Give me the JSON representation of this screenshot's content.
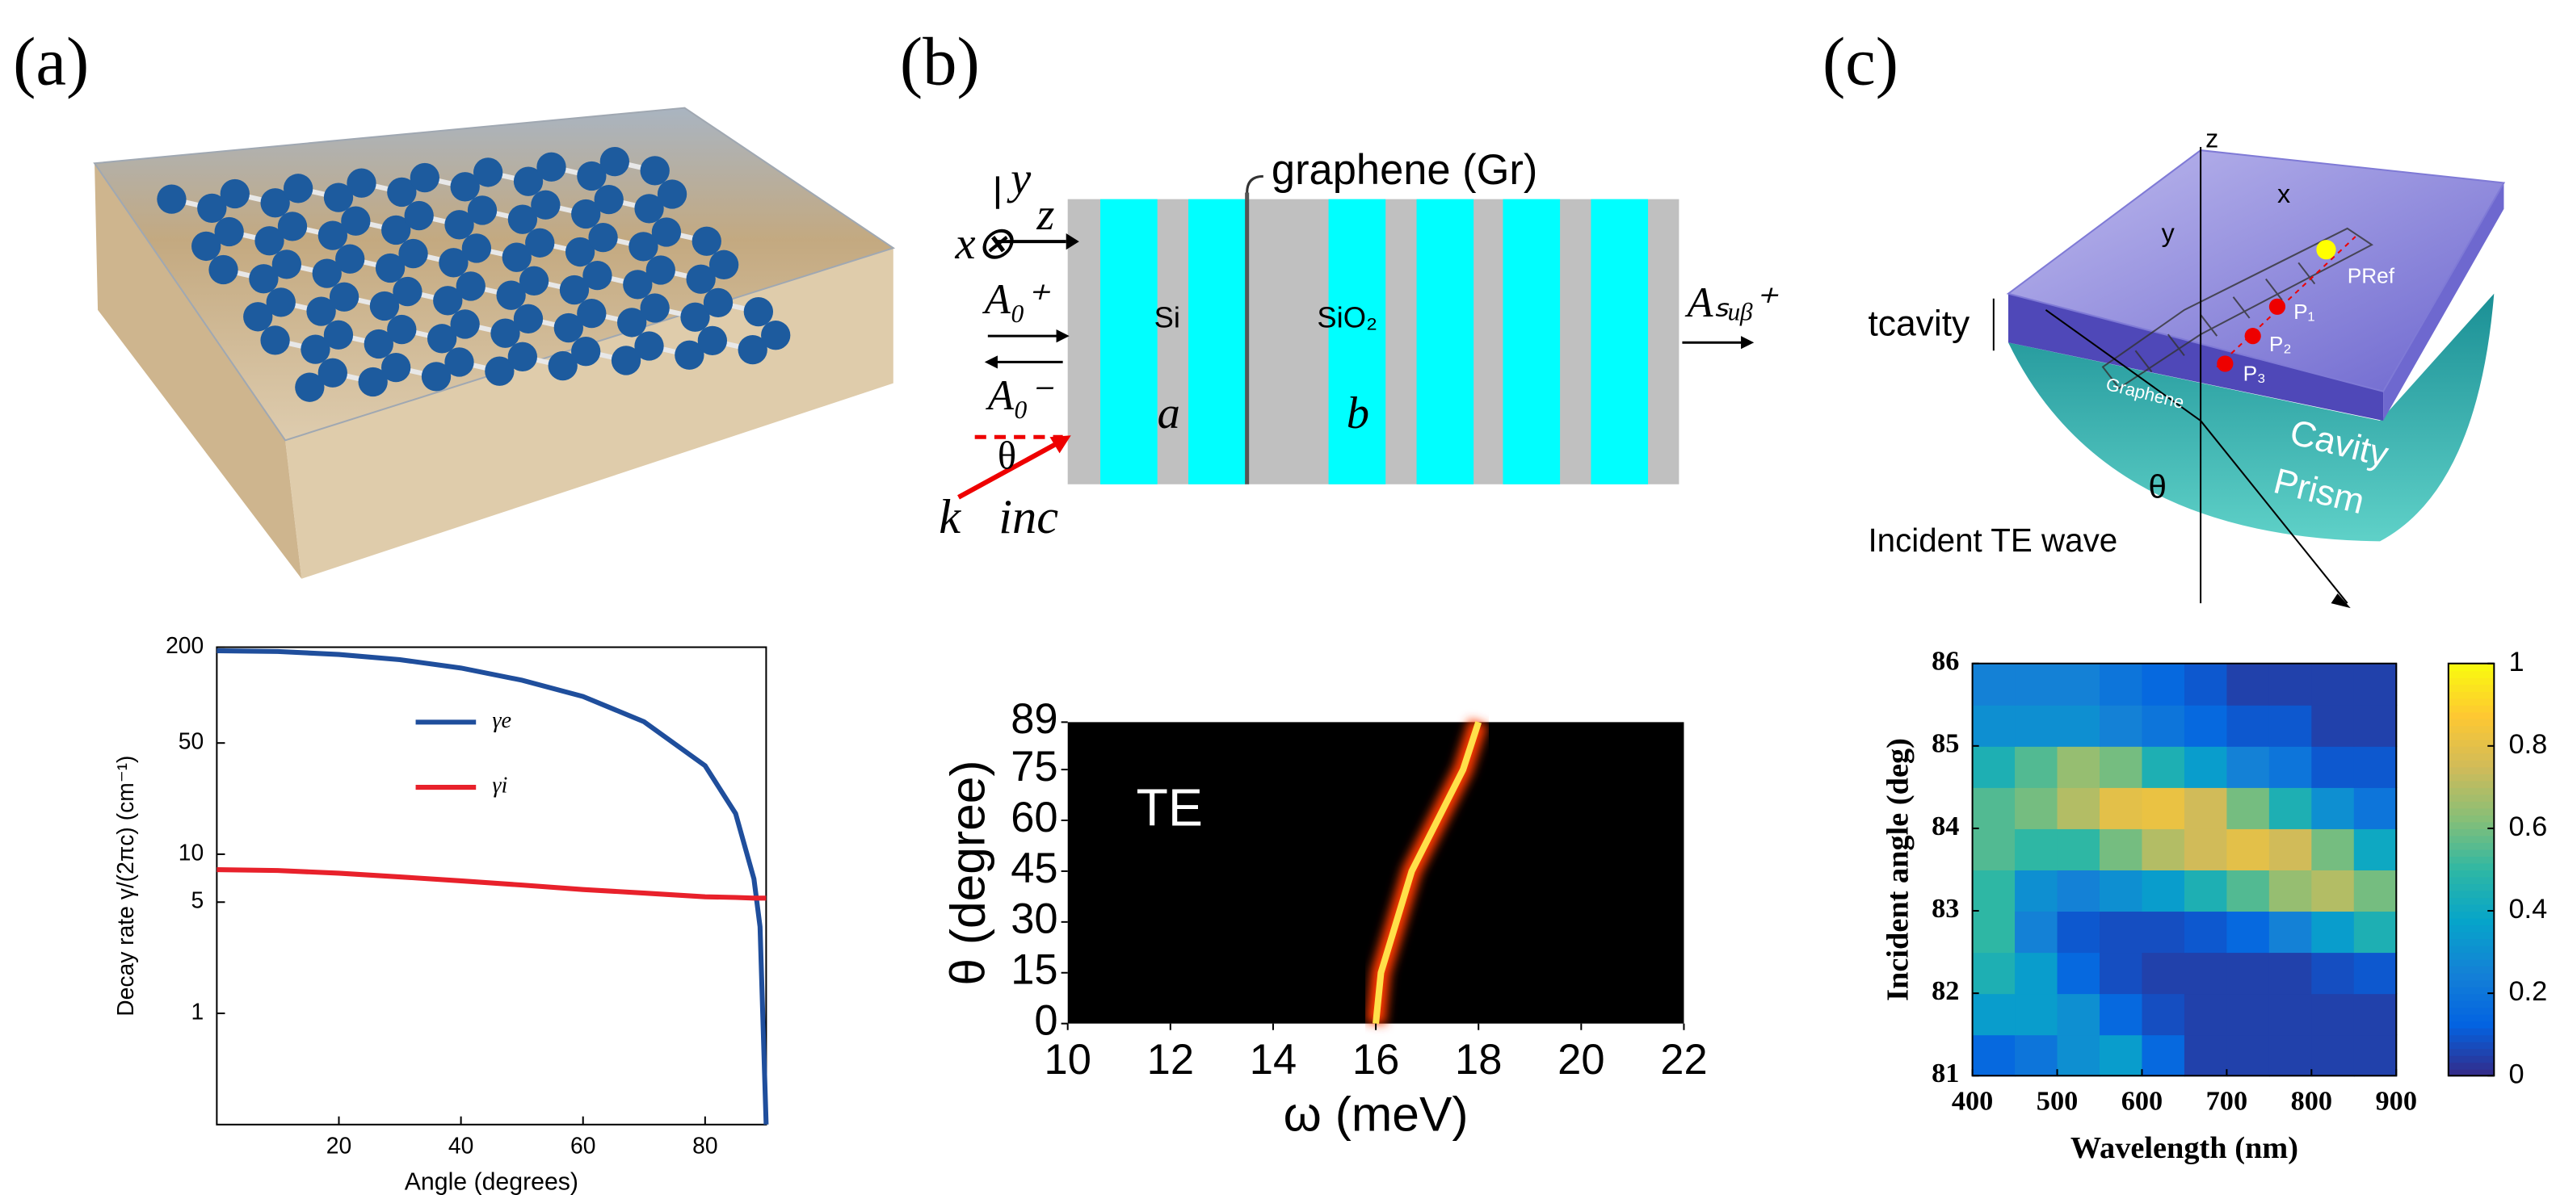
{
  "figure": {
    "panel_labels": [
      "(a)",
      "(b)",
      "(c)"
    ]
  },
  "diagram_b": {
    "axes": [
      "y",
      "z",
      "x⊗"
    ],
    "graphene": "graphene (Gr)",
    "incident": "A₀⁺",
    "reflected": "A₀⁻",
    "transmitted": "Aₛᵤᵦ⁺",
    "materials": [
      "Si",
      "SiO₂"
    ],
    "layers": [
      "a",
      "b"
    ],
    "angle": "θ",
    "wavevector": "k⃗inc"
  },
  "diagram_c": {
    "axes": [
      "z",
      "x",
      "y"
    ],
    "points": [
      "PRef",
      "P₁",
      "P₂",
      "P₃"
    ],
    "thickness": "tcavity",
    "graphene": "Graphene",
    "cavity": "Cavity",
    "prism": "Prism",
    "angle": "θ",
    "incident": "Incident TE wave"
  },
  "chart_data": [
    {
      "type": "line",
      "xlabel": "Angle (degrees)",
      "ylabel": "Decay rate γ/(2πc) (cm⁻¹)",
      "log_y": true,
      "x": [
        0,
        10,
        20,
        30,
        40,
        50,
        60,
        70,
        80,
        85,
        88,
        89,
        90
      ],
      "xlim": [
        0,
        90
      ],
      "xticks": [
        20,
        40,
        60,
        80
      ],
      "ylim": [
        0.2,
        200
      ],
      "yticks": [
        1,
        5,
        10,
        50,
        200
      ],
      "series": [
        {
          "name": "γe",
          "color": "#1f4e9c",
          "values": [
            190,
            188,
            180,
            167,
            148,
            124,
            98,
            68,
            36,
            18,
            7,
            3.5,
            0.2
          ]
        },
        {
          "name": "γi",
          "color": "#e8212b",
          "values": [
            8,
            7.9,
            7.6,
            7.2,
            6.8,
            6.4,
            6,
            5.7,
            5.4,
            5.35,
            5.3,
            5.3,
            5.3
          ]
        }
      ]
    },
    {
      "type": "line",
      "annotation": "TE",
      "xlabel": "ω (meV)",
      "ylabel": "θ (degree)",
      "x": [
        16.0,
        16.1,
        16.4,
        16.7,
        17.2,
        17.7,
        18.0
      ],
      "values": [
        0,
        15,
        30,
        45,
        60,
        75,
        89
      ],
      "color": "#ffe04a",
      "background": "#000000",
      "xlim": [
        10,
        22
      ],
      "xticks": [
        10,
        12,
        14,
        16,
        18,
        20,
        22
      ],
      "ylim": [
        0,
        89
      ],
      "yticks": [
        0,
        15,
        30,
        45,
        60,
        75,
        89
      ]
    },
    {
      "type": "heatmap",
      "xlabel": "Wavelength (nm)",
      "ylabel": "Incident angle (deg)",
      "colormap": "parula",
      "x": [
        425,
        475,
        525,
        575,
        625,
        675,
        725,
        775,
        825,
        875
      ],
      "y": [
        81.25,
        81.75,
        82.25,
        82.75,
        83.25,
        83.75,
        84.25,
        84.75,
        85.25,
        85.75
      ],
      "z": [
        [
          0.15,
          0.2,
          0.3,
          0.35,
          0.15,
          0.05,
          0.05,
          0.05,
          0.05,
          0.05
        ],
        [
          0.35,
          0.35,
          0.3,
          0.15,
          0.08,
          0.05,
          0.05,
          0.05,
          0.05,
          0.05
        ],
        [
          0.45,
          0.35,
          0.15,
          0.08,
          0.05,
          0.05,
          0.05,
          0.05,
          0.08,
          0.1
        ],
        [
          0.5,
          0.25,
          0.1,
          0.08,
          0.08,
          0.1,
          0.15,
          0.25,
          0.35,
          0.45
        ],
        [
          0.5,
          0.3,
          0.25,
          0.3,
          0.35,
          0.45,
          0.55,
          0.65,
          0.7,
          0.6
        ],
        [
          0.55,
          0.5,
          0.5,
          0.6,
          0.7,
          0.75,
          0.8,
          0.75,
          0.6,
          0.4
        ],
        [
          0.55,
          0.6,
          0.7,
          0.8,
          0.82,
          0.75,
          0.6,
          0.45,
          0.3,
          0.2
        ],
        [
          0.45,
          0.55,
          0.65,
          0.6,
          0.45,
          0.35,
          0.25,
          0.2,
          0.1,
          0.1
        ],
        [
          0.3,
          0.3,
          0.3,
          0.25,
          0.2,
          0.15,
          0.1,
          0.1,
          0.05,
          0.05
        ],
        [
          0.25,
          0.25,
          0.25,
          0.2,
          0.15,
          0.1,
          0.05,
          0.05,
          0.05,
          0.05
        ]
      ],
      "xlim": [
        400,
        900
      ],
      "xticks": [
        400,
        500,
        600,
        700,
        800,
        900
      ],
      "ylim": [
        81,
        86
      ],
      "yticks": [
        81,
        82,
        83,
        84,
        85,
        86
      ],
      "clim": [
        0,
        1
      ],
      "cticks": [
        0,
        0.2,
        0.4,
        0.6,
        0.8,
        1
      ]
    }
  ]
}
